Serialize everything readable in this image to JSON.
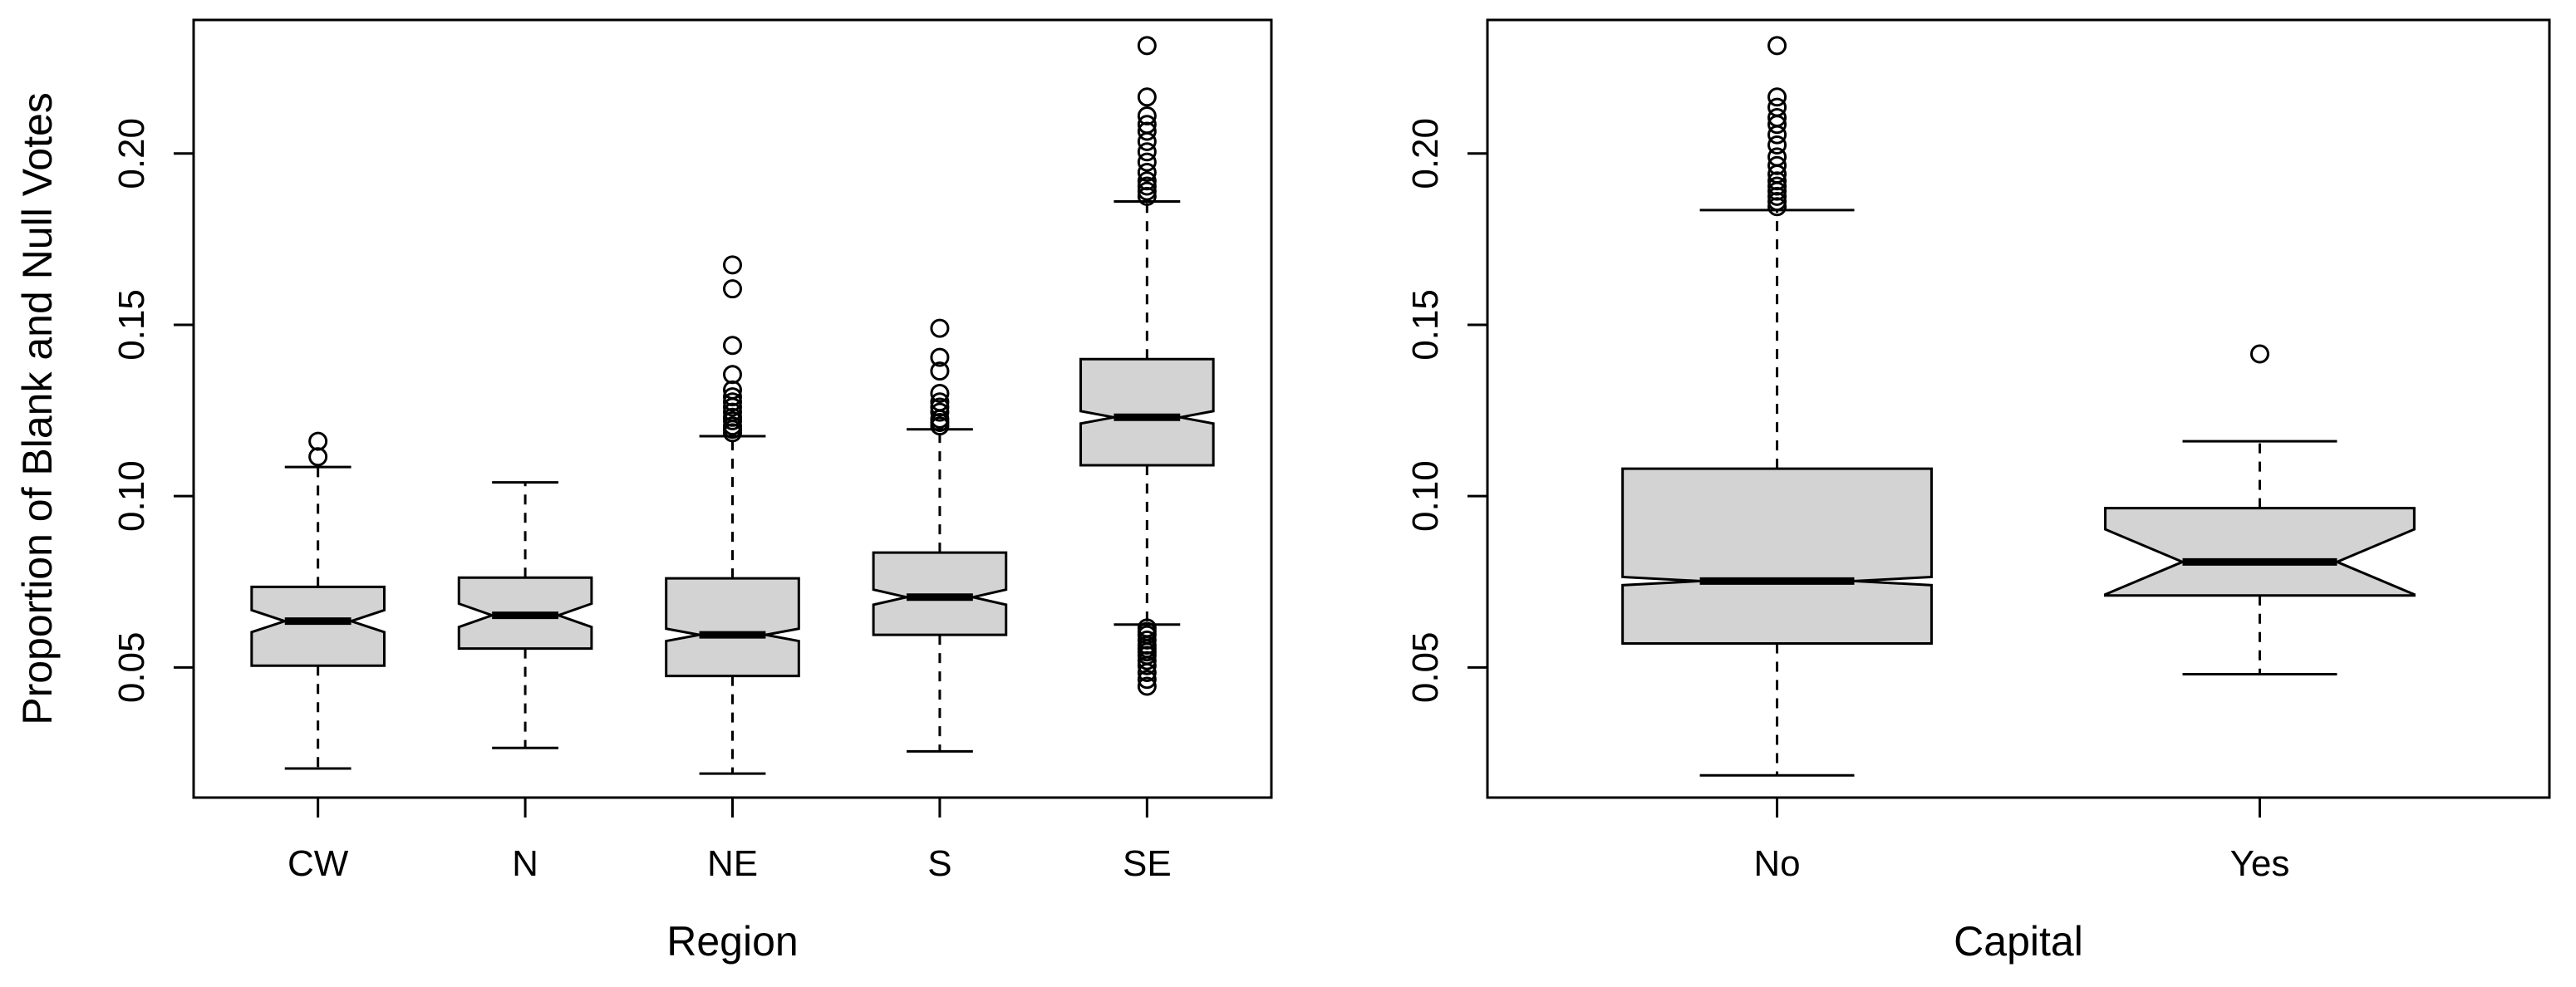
{
  "chart_data": [
    {
      "type": "box",
      "notched": true,
      "title": "",
      "xlabel": "Region",
      "ylabel": "Proportion of Blank and Null Votes",
      "ylim": [
        0.012,
        0.239
      ],
      "yticks": [
        "0.05",
        "0.10",
        "0.15",
        "0.20"
      ],
      "grid": false,
      "categories": [
        "CW",
        "N",
        "NE",
        "S",
        "SE"
      ],
      "boxes": [
        {
          "label": "CW",
          "min": 0.0205,
          "q1": 0.0505,
          "median": 0.0635,
          "q3": 0.0735,
          "max": 0.1085,
          "notch": 0.0032,
          "outliers": [
            0.1115,
            0.116
          ]
        },
        {
          "label": "N",
          "min": 0.0265,
          "q1": 0.0555,
          "median": 0.0652,
          "q3": 0.0762,
          "max": 0.104,
          "notch": 0.0034,
          "outliers": []
        },
        {
          "label": "NE",
          "min": 0.019,
          "q1": 0.0475,
          "median": 0.0595,
          "q3": 0.076,
          "max": 0.1175,
          "notch": 0.0018,
          "outliers": [
            0.1185,
            0.1195,
            0.1205,
            0.122,
            0.123,
            0.1245,
            0.126,
            0.1275,
            0.129,
            0.131,
            0.1355,
            0.144,
            0.1605,
            0.1675
          ]
        },
        {
          "label": "S",
          "min": 0.0255,
          "q1": 0.0595,
          "median": 0.0705,
          "q3": 0.0835,
          "max": 0.1195,
          "notch": 0.0022,
          "outliers": [
            0.1205,
            0.1215,
            0.1225,
            0.1245,
            0.126,
            0.1275,
            0.13,
            0.1365,
            0.1405,
            0.149
          ]
        },
        {
          "label": "SE",
          "min": 0.0625,
          "q1": 0.109,
          "median": 0.123,
          "q3": 0.14,
          "max": 0.186,
          "notch": 0.0018,
          "outliers": [
            0.0445,
            0.0465,
            0.0485,
            0.0505,
            0.052,
            0.0535,
            0.0545,
            0.0555,
            0.0565,
            0.058,
            0.0595,
            0.0605,
            0.0615,
            0.1875,
            0.189,
            0.1905,
            0.192,
            0.1945,
            0.1975,
            0.2005,
            0.2035,
            0.2065,
            0.2085,
            0.211,
            0.2165,
            0.2315
          ]
        }
      ]
    },
    {
      "type": "box",
      "notched": true,
      "title": "",
      "xlabel": "Capital",
      "ylabel": "",
      "ylim": [
        0.012,
        0.239
      ],
      "yticks": [
        "0.05",
        "0.10",
        "0.15",
        "0.20"
      ],
      "grid": false,
      "categories": [
        "No",
        "Yes"
      ],
      "boxes": [
        {
          "label": "No",
          "min": 0.0185,
          "q1": 0.057,
          "median": 0.0752,
          "q3": 0.108,
          "max": 0.1835,
          "notch": 0.0012,
          "outliers": [
            0.1845,
            0.186,
            0.1875,
            0.189,
            0.1905,
            0.192,
            0.194,
            0.1965,
            0.199,
            0.2025,
            0.2055,
            0.2085,
            0.2105,
            0.2135,
            0.2165,
            0.2315
          ]
        },
        {
          "label": "Yes",
          "min": 0.048,
          "q1": 0.071,
          "median": 0.0808,
          "q3": 0.0965,
          "max": 0.116,
          "notch": 0.0095,
          "outliers": [
            0.1415
          ]
        }
      ]
    }
  ]
}
